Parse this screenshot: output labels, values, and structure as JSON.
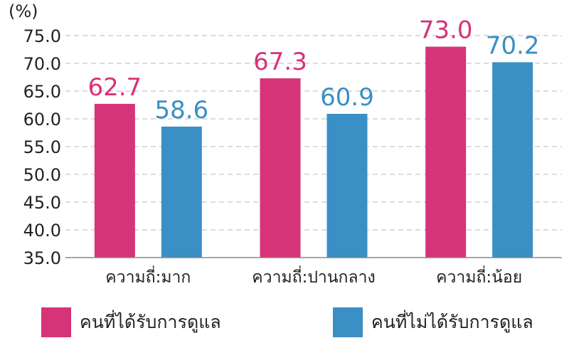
{
  "chart_data": {
    "type": "bar",
    "unit_label": "(%)",
    "categories": [
      "ความถี่:มาก",
      "ความถี่:ปานกลาง",
      "ความถี่:น้อย"
    ],
    "series": [
      {
        "name": "คนที่ได้รับการดูแล",
        "values": [
          62.7,
          67.3,
          73.0
        ],
        "value_labels": [
          "62.7",
          "67.3",
          "73.0"
        ],
        "color": "#d63378"
      },
      {
        "name": "คนที่ไม่ได้รับการดูแล",
        "values": [
          58.6,
          60.9,
          70.2
        ],
        "value_labels": [
          "58.6",
          "60.9",
          "70.2"
        ],
        "color": "#3a8fc4"
      }
    ],
    "ylim": [
      35.0,
      75.0
    ],
    "yticks": [
      "35.0",
      "40.0",
      "45.0",
      "50.0",
      "55.0",
      "60.0",
      "65.0",
      "70.0",
      "75.0"
    ],
    "grid": true,
    "legend_position": "bottom"
  }
}
